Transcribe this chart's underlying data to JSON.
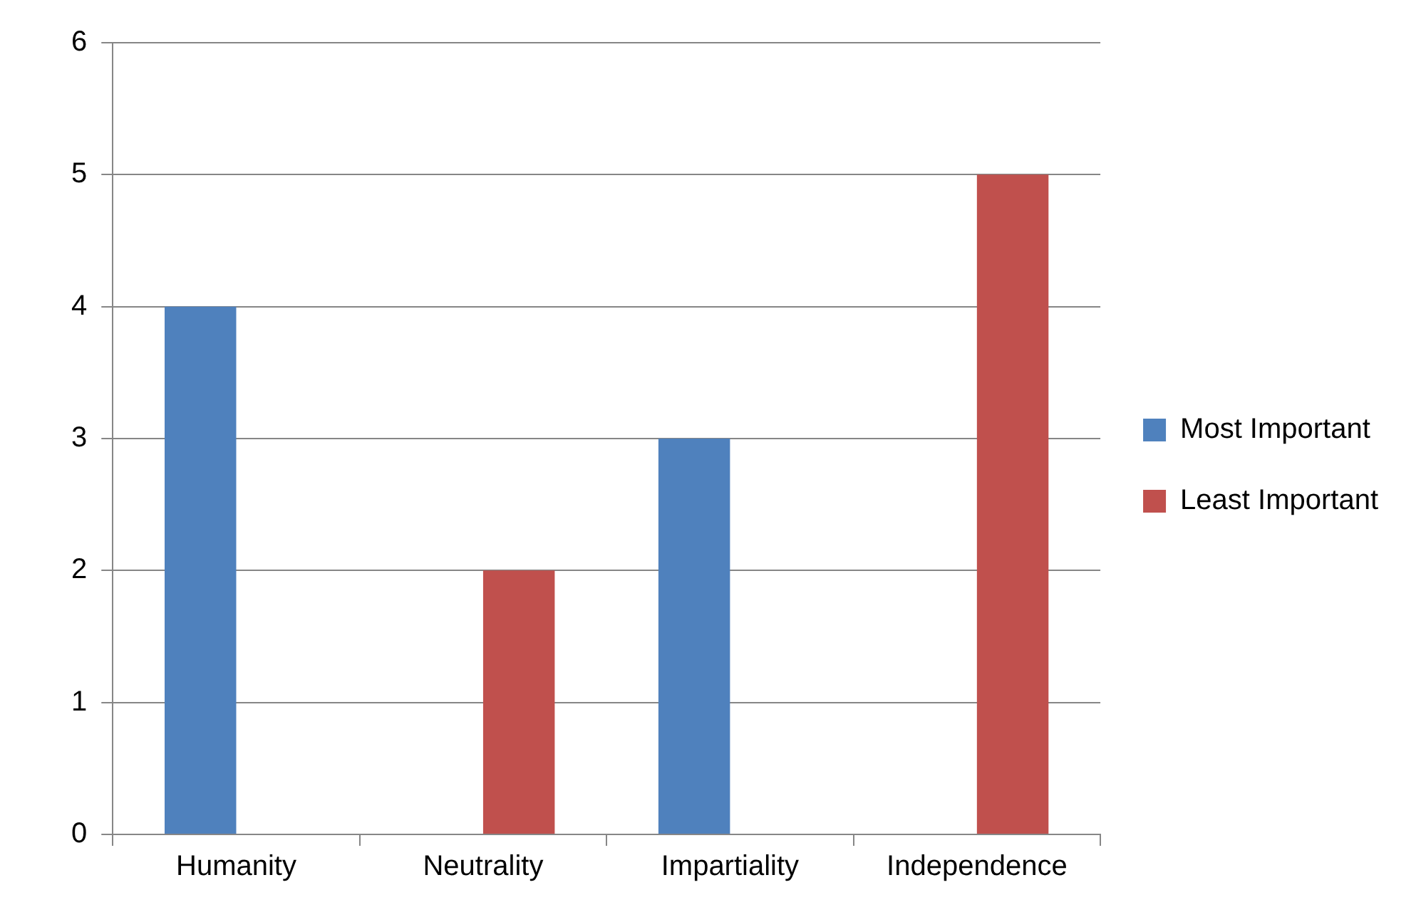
{
  "chart_data": {
    "type": "bar",
    "categories": [
      "Humanity",
      "Neutrality",
      "Impartiality",
      "Independence"
    ],
    "series": [
      {
        "name": "Most Important",
        "color": "#4f81bd",
        "values": [
          4,
          0,
          3,
          0
        ]
      },
      {
        "name": "Least Important",
        "color": "#c0504d",
        "values": [
          0,
          2,
          0,
          5
        ]
      }
    ],
    "ylim": [
      0,
      6
    ],
    "yticks": [
      0,
      1,
      2,
      3,
      4,
      5,
      6
    ],
    "grid": "y",
    "legend": "right"
  }
}
